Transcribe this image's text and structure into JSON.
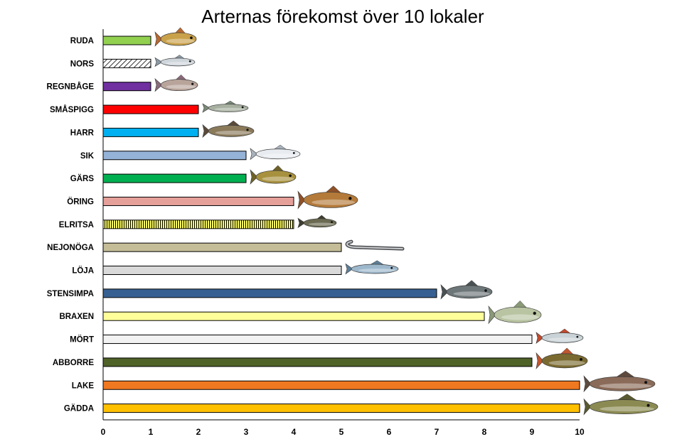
{
  "chart_data": {
    "type": "bar",
    "orientation": "horizontal",
    "title": "Arternas förekomst över 10 lokaler",
    "xlabel": "",
    "ylabel": "",
    "xlim": [
      0,
      10
    ],
    "grid": false,
    "legend": "none",
    "categories": [
      "RUDA",
      "NORS",
      "REGNBÅGE",
      "SMÅSPIGG",
      "HARR",
      "SIK",
      "GÄRS",
      "ÖRING",
      "ELRITSA",
      "NEJONÖGA",
      "LÖJA",
      "STENSIMPA",
      "BRAXEN",
      "MÖRT",
      "ABBORRE",
      "LAKE",
      "GÄDDA"
    ],
    "values": [
      1,
      1,
      1,
      2,
      2,
      3,
      3,
      4,
      4,
      5,
      5,
      7,
      8,
      9,
      9,
      10,
      10
    ],
    "colors": [
      "#92d050",
      "hatch-diagonal",
      "#7030a0",
      "#ff0000",
      "#00b0f0",
      "#95b3d7",
      "#00b050",
      "#e6a09a",
      "hatch-vertical-yellow",
      "#c4bd97",
      "#d9d9d9",
      "#376092",
      "#ffff99",
      "#f2f2f2",
      "#4f6228",
      "#f07820",
      "#ffc000"
    ],
    "x_ticks": [
      "0",
      "1",
      "2",
      "3",
      "4",
      "5",
      "6",
      "7",
      "8",
      "9",
      "10"
    ],
    "bar_icons": [
      "crucian-carp-icon",
      "smelt-icon",
      "rainbow-trout-icon",
      "stickleback-icon",
      "grayling-icon",
      "whitefish-icon",
      "ruffe-icon",
      "brown-trout-icon",
      "minnow-icon",
      "lamprey-icon",
      "bleak-icon",
      "sculpin-icon",
      "bream-icon",
      "roach-icon",
      "perch-icon",
      "burbot-icon",
      "pike-icon"
    ]
  }
}
